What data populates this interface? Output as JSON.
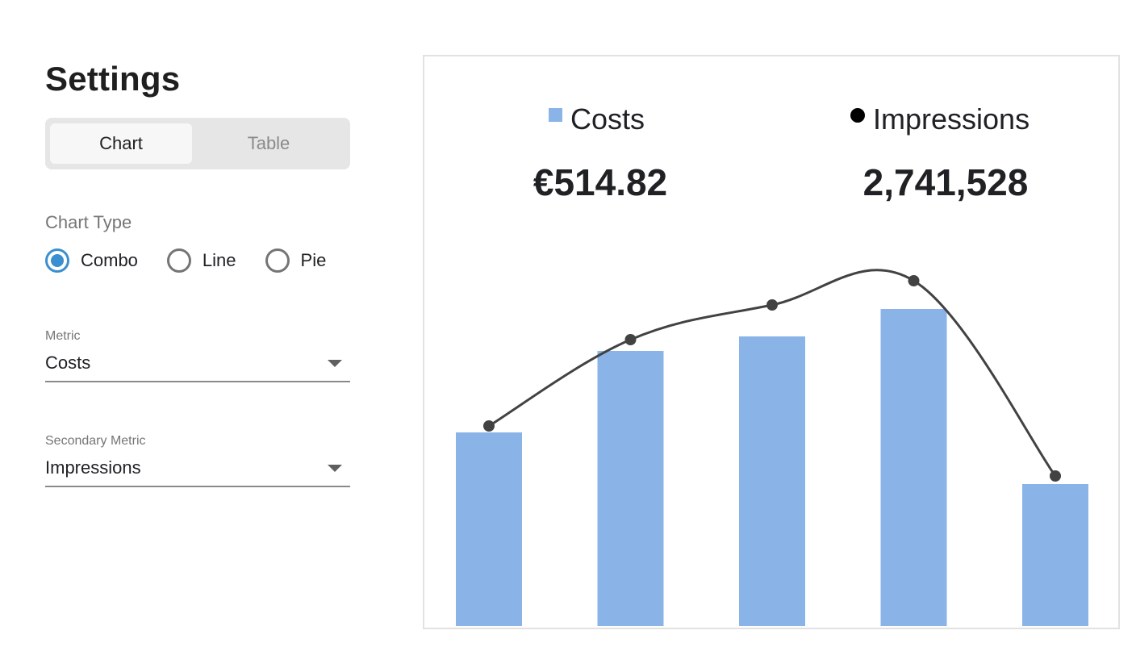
{
  "settings": {
    "title": "Settings",
    "view_toggle": {
      "chart_label": "Chart",
      "table_label": "Table",
      "selected": "Chart"
    },
    "chart_type": {
      "label": "Chart Type",
      "options": [
        "Combo",
        "Line",
        "Pie"
      ],
      "selected": "Combo"
    },
    "metric": {
      "label": "Metric",
      "value": "Costs"
    },
    "secondary_metric": {
      "label": "Secondary Metric",
      "value": "Impressions"
    }
  },
  "summary": {
    "costs_label": "Costs",
    "costs_value": "€514.82",
    "impressions_label": "Impressions",
    "impressions_value": "2,741,528"
  },
  "colors": {
    "bar": "#8ab4e8",
    "line": "#424242",
    "accent": "#3b8fd0"
  },
  "chart_data": {
    "type": "bar",
    "categories": [
      "",
      "",
      "",
      "",
      ""
    ],
    "series": [
      {
        "name": "Costs",
        "type": "bar",
        "values": [
          240,
          341,
          359,
          393,
          176
        ]
      },
      {
        "name": "Impressions",
        "type": "line",
        "values": [
          248,
          355,
          398,
          428,
          186
        ]
      }
    ],
    "ylim": [
      0,
      480
    ],
    "grid": false,
    "legend": "top"
  }
}
